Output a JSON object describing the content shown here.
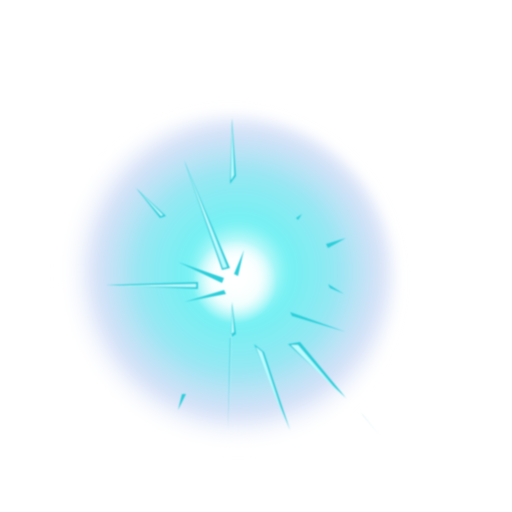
{
  "effect": {
    "name": "energy-burst",
    "colors": {
      "background": "#ffffff",
      "core": "#ffffff",
      "inner_glow": "#48e9ec",
      "mid_glow": "#8fe6f2",
      "outer_glow": "#c9c9f4",
      "ray_light": "#b9fbff",
      "ray_dark": "#2acdd9"
    }
  }
}
